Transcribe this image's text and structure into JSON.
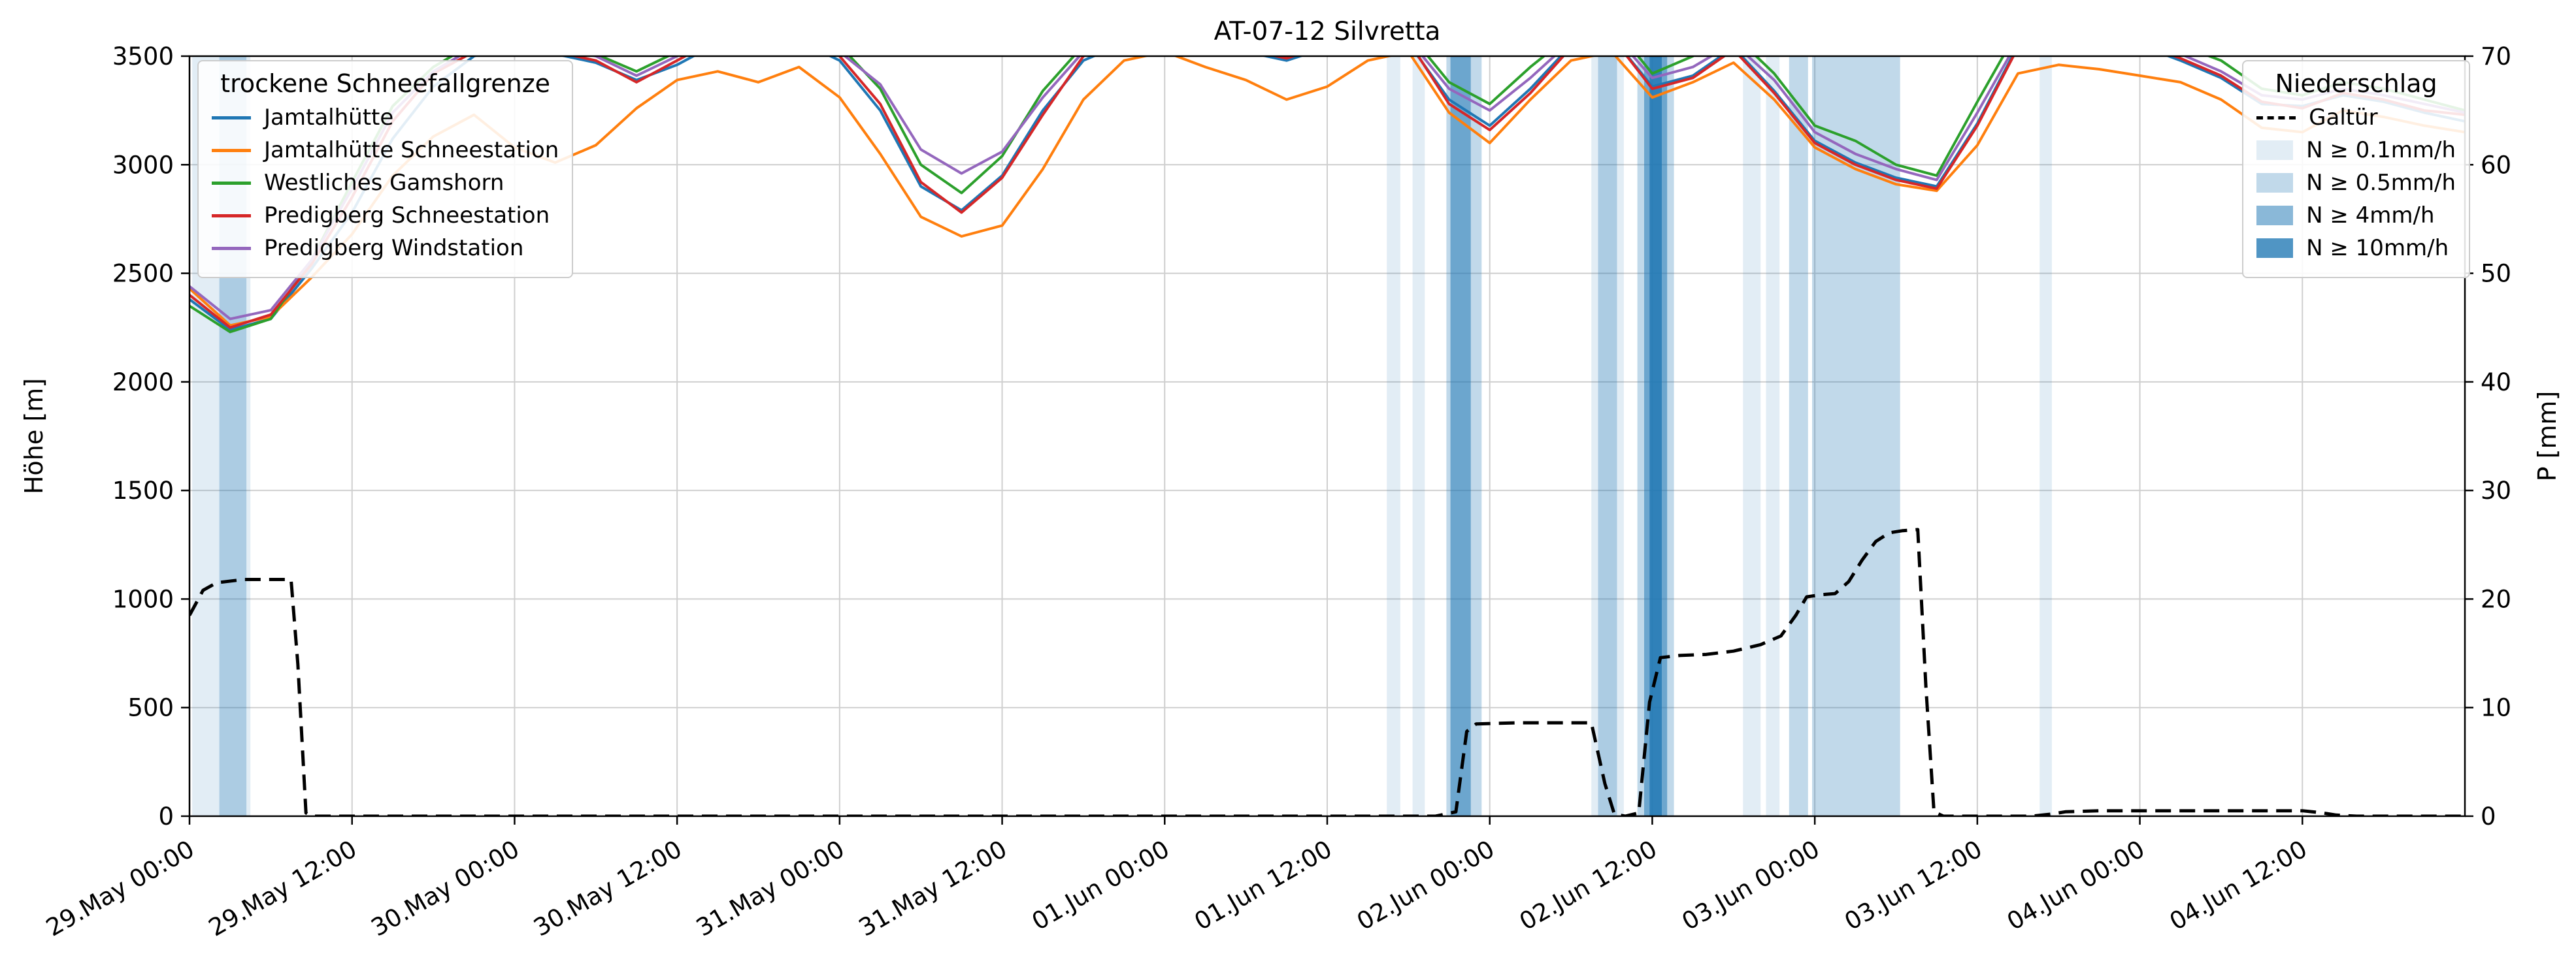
{
  "title": "AT-07-12 Silvretta",
  "axes": {
    "x": {
      "max_hour": 168,
      "tick_hours": [
        0,
        12,
        24,
        36,
        48,
        60,
        72,
        84,
        96,
        108,
        120,
        132,
        144,
        156
      ],
      "tick_labels": [
        "29.May 00:00",
        "29.May 12:00",
        "30.May 00:00",
        "30.May 12:00",
        "31.May 00:00",
        "31.May 12:00",
        "01.Jun 00:00",
        "01.Jun 12:00",
        "02.Jun 00:00",
        "02.Jun 12:00",
        "03.Jun 00:00",
        "03.Jun 12:00",
        "04.Jun 00:00",
        "04.Jun 12:00"
      ]
    },
    "y_left": {
      "label": "Höhe [m]",
      "min": 0,
      "max": 3500,
      "ticks": [
        0,
        500,
        1000,
        1500,
        2000,
        2500,
        3000,
        3500
      ]
    },
    "y_right": {
      "label": "P [mm]",
      "min": 0,
      "max": 70,
      "ticks": [
        0,
        10,
        20,
        30,
        40,
        50,
        60,
        70
      ]
    }
  },
  "legend_lines": {
    "title": "trockene Schneefallgrenze"
  },
  "legend_precip": {
    "title": "Niederschlag"
  },
  "chart_data": {
    "type": "line",
    "grid_color": "#cfcfcf",
    "x_hours": [
      0,
      3,
      6,
      9,
      12,
      15,
      18,
      21,
      24,
      27,
      30,
      33,
      36,
      39,
      42,
      45,
      48,
      51,
      54,
      57,
      60,
      63,
      66,
      69,
      72,
      75,
      78,
      81,
      84,
      87,
      90,
      93,
      96,
      99,
      102,
      105,
      108,
      111,
      114,
      117,
      120,
      123,
      126,
      129,
      132,
      135,
      138,
      141,
      144,
      147,
      150,
      153,
      156,
      159,
      162,
      165,
      168
    ],
    "series": [
      {
        "name": "Jamtalhütte",
        "color": "#1f77b4",
        "values": [
          2380,
          2240,
          2290,
          2520,
          2780,
          3120,
          3360,
          3500,
          3550,
          3510,
          3470,
          3390,
          3460,
          3560,
          3520,
          3570,
          3480,
          3250,
          2900,
          2790,
          2950,
          3250,
          3480,
          3560,
          3600,
          3570,
          3520,
          3480,
          3540,
          3590,
          3560,
          3300,
          3180,
          3350,
          3550,
          3590,
          3360,
          3410,
          3540,
          3340,
          3110,
          3010,
          2940,
          2900,
          3190,
          3550,
          3610,
          3590,
          3550,
          3480,
          3400,
          3280,
          3270,
          3320,
          3290,
          3240,
          3200
        ]
      },
      {
        "name": "Jamtalhütte Schneestation",
        "color": "#ff7f0e",
        "values": [
          2430,
          2260,
          2300,
          2480,
          2680,
          2950,
          3130,
          3230,
          3080,
          3010,
          3090,
          3260,
          3390,
          3430,
          3380,
          3450,
          3310,
          3050,
          2760,
          2670,
          2720,
          2980,
          3300,
          3480,
          3520,
          3450,
          3390,
          3300,
          3360,
          3480,
          3520,
          3240,
          3100,
          3300,
          3480,
          3520,
          3310,
          3380,
          3470,
          3300,
          3080,
          2980,
          2910,
          2880,
          3090,
          3420,
          3460,
          3440,
          3410,
          3380,
          3300,
          3170,
          3150,
          3250,
          3220,
          3180,
          3150
        ]
      },
      {
        "name": "Westliches Gamshorn",
        "color": "#2ca02c",
        "values": [
          2350,
          2230,
          2290,
          2560,
          2920,
          3270,
          3450,
          3560,
          3600,
          3560,
          3510,
          3430,
          3520,
          3620,
          3580,
          3620,
          3550,
          3350,
          3000,
          2870,
          3040,
          3340,
          3550,
          3620,
          3650,
          3620,
          3580,
          3550,
          3600,
          3650,
          3610,
          3380,
          3280,
          3450,
          3600,
          3650,
          3420,
          3500,
          3600,
          3420,
          3180,
          3110,
          3000,
          2950,
          3290,
          3620,
          3680,
          3650,
          3600,
          3550,
          3480,
          3350,
          3320,
          3380,
          3350,
          3300,
          3250
        ]
      },
      {
        "name": "Predigberg Schneestation",
        "color": "#d62728",
        "values": [
          2400,
          2250,
          2310,
          2540,
          2850,
          3200,
          3420,
          3520,
          3560,
          3520,
          3480,
          3380,
          3480,
          3580,
          3540,
          3580,
          3500,
          3280,
          2920,
          2780,
          2940,
          3230,
          3500,
          3570,
          3610,
          3580,
          3530,
          3490,
          3550,
          3600,
          3570,
          3280,
          3160,
          3330,
          3540,
          3590,
          3350,
          3400,
          3530,
          3330,
          3100,
          3000,
          2930,
          2890,
          3180,
          3540,
          3620,
          3590,
          3560,
          3490,
          3410,
          3290,
          3260,
          3330,
          3300,
          3250,
          3230
        ]
      },
      {
        "name": "Predigberg Windstation",
        "color": "#9467bd",
        "values": [
          2440,
          2290,
          2330,
          2560,
          2890,
          3240,
          3430,
          3540,
          3580,
          3540,
          3500,
          3410,
          3500,
          3600,
          3560,
          3600,
          3520,
          3370,
          3070,
          2960,
          3060,
          3310,
          3520,
          3590,
          3620,
          3590,
          3550,
          3510,
          3560,
          3610,
          3580,
          3350,
          3250,
          3400,
          3570,
          3610,
          3400,
          3450,
          3560,
          3390,
          3150,
          3050,
          2980,
          2930,
          3240,
          3570,
          3630,
          3600,
          3570,
          3510,
          3430,
          3320,
          3300,
          3350,
          3320,
          3280,
          3240
        ]
      }
    ],
    "precip_line": {
      "name": "Galtür",
      "color": "#000000",
      "dash": true,
      "points": [
        [
          0,
          18.5
        ],
        [
          1,
          20.8
        ],
        [
          2,
          21.5
        ],
        [
          4,
          21.8
        ],
        [
          6,
          21.8
        ],
        [
          7.5,
          21.8
        ],
        [
          8,
          14
        ],
        [
          8.6,
          0.3
        ],
        [
          9,
          0
        ],
        [
          30,
          0
        ],
        [
          60,
          0
        ],
        [
          92,
          0
        ],
        [
          93.5,
          0.4
        ],
        [
          94.3,
          7.8
        ],
        [
          95,
          8.5
        ],
        [
          98,
          8.6
        ],
        [
          102,
          8.6
        ],
        [
          103.5,
          8.6
        ],
        [
          104.5,
          3
        ],
        [
          105.2,
          0.2
        ],
        [
          106,
          0
        ],
        [
          107,
          0.3
        ],
        [
          107.8,
          10.5
        ],
        [
          108.6,
          14.6
        ],
        [
          110,
          14.8
        ],
        [
          112,
          14.9
        ],
        [
          114,
          15.2
        ],
        [
          116,
          15.8
        ],
        [
          117.5,
          16.6
        ],
        [
          118.6,
          18.5
        ],
        [
          119.4,
          20.2
        ],
        [
          120.5,
          20.4
        ],
        [
          121.5,
          20.5
        ],
        [
          122.5,
          21.6
        ],
        [
          123.5,
          23.6
        ],
        [
          124.5,
          25.3
        ],
        [
          125.5,
          26.1
        ],
        [
          126.5,
          26.3
        ],
        [
          127.6,
          26.4
        ],
        [
          128.2,
          12
        ],
        [
          128.8,
          0.4
        ],
        [
          129.5,
          0
        ],
        [
          136,
          0
        ],
        [
          137.5,
          0.2
        ],
        [
          138.5,
          0.4
        ],
        [
          141,
          0.5
        ],
        [
          146,
          0.5
        ],
        [
          151,
          0.5
        ],
        [
          156,
          0.5
        ],
        [
          157.5,
          0.3
        ],
        [
          158.5,
          0.1
        ],
        [
          160,
          0
        ],
        [
          168,
          0
        ]
      ]
    },
    "precip_levels": [
      {
        "label": "N ≥ 0.1mm/h",
        "color": "rgba(31,119,180,0.13)"
      },
      {
        "label": "N ≥ 0.5mm/h",
        "color": "rgba(31,119,180,0.28)"
      },
      {
        "label": "N ≥ 4mm/h",
        "color": "rgba(31,119,180,0.52)"
      },
      {
        "label": "N ≥ 10mm/h",
        "color": "rgba(31,119,180,0.78)"
      }
    ],
    "precip_bands": [
      {
        "start": 0.2,
        "end": 4.5,
        "level": 0
      },
      {
        "start": 2.2,
        "end": 4.2,
        "level": 1
      },
      {
        "start": 88.4,
        "end": 89.4,
        "level": 0
      },
      {
        "start": 90.3,
        "end": 91.2,
        "level": 0
      },
      {
        "start": 92.8,
        "end": 95.4,
        "level": 1
      },
      {
        "start": 93.1,
        "end": 94.6,
        "level": 2
      },
      {
        "start": 103.5,
        "end": 105.9,
        "level": 0
      },
      {
        "start": 104.0,
        "end": 105.4,
        "level": 1
      },
      {
        "start": 106.9,
        "end": 109.6,
        "level": 1
      },
      {
        "start": 107.4,
        "end": 109.1,
        "level": 2
      },
      {
        "start": 107.8,
        "end": 108.7,
        "level": 3
      },
      {
        "start": 114.7,
        "end": 116.0,
        "level": 0
      },
      {
        "start": 116.4,
        "end": 117.4,
        "level": 0
      },
      {
        "start": 118.1,
        "end": 119.5,
        "level": 1
      },
      {
        "start": 119.8,
        "end": 126.3,
        "level": 1
      },
      {
        "start": 136.6,
        "end": 137.5,
        "level": 0
      }
    ]
  }
}
